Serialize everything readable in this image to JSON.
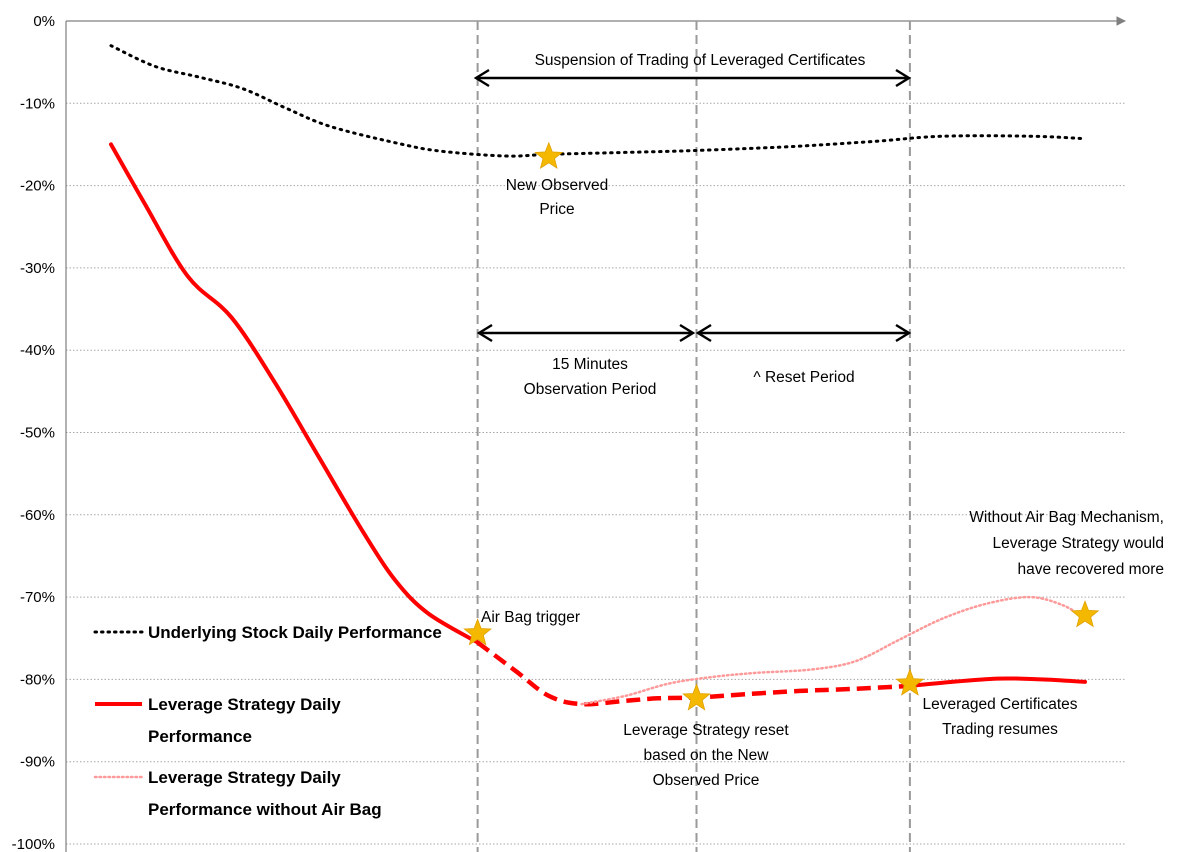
{
  "chart_data": {
    "type": "line",
    "title": "",
    "xlabel": "",
    "ylabel": "",
    "ylim": [
      -100,
      0
    ],
    "y_ticks": [
      "0%",
      "-10%",
      "-20%",
      "-30%",
      "-40%",
      "-50%",
      "-60%",
      "-70%",
      "-80%",
      "-90%",
      "-100%"
    ],
    "grid": true,
    "legend_position": "bottom-left",
    "series": [
      {
        "name": "Underlying Stock Daily Performance",
        "style": "dotted",
        "color": "#000000",
        "points": [
          [
            0,
            -3
          ],
          [
            4,
            -5.5
          ],
          [
            8,
            -6.8
          ],
          [
            12,
            -8.2
          ],
          [
            16,
            -10.6
          ],
          [
            20,
            -12.8
          ],
          [
            26,
            -14.8
          ],
          [
            30,
            -15.8
          ],
          [
            36,
            -16.4
          ],
          [
            40,
            -16.2
          ],
          [
            46,
            -16
          ],
          [
            52,
            -15.8
          ],
          [
            58,
            -15.5
          ],
          [
            63,
            -15.2
          ],
          [
            70,
            -14.6
          ],
          [
            76,
            -14
          ],
          [
            84,
            -14
          ],
          [
            89,
            -14.3
          ]
        ]
      },
      {
        "name": "Leverage Strategy Daily Performance",
        "style": "solid",
        "color": "#ff0000",
        "points": [
          [
            0,
            -15
          ],
          [
            3,
            -22
          ],
          [
            7,
            -31
          ],
          [
            11,
            -36
          ],
          [
            15,
            -44
          ],
          [
            19,
            -53
          ],
          [
            23,
            -62
          ],
          [
            26,
            -68
          ],
          [
            29,
            -72
          ],
          [
            33.5,
            -75.5
          ]
        ]
      },
      {
        "name": "Leverage Strategy Daily Performance",
        "style": "dashed",
        "color": "#ff0000",
        "points": [
          [
            33.5,
            -75.5
          ],
          [
            37,
            -79
          ],
          [
            40,
            -82
          ],
          [
            43,
            -83
          ],
          [
            47,
            -82.6
          ],
          [
            50,
            -82.3
          ],
          [
            53.5,
            -82.2
          ],
          [
            58,
            -81.8
          ],
          [
            63,
            -81.4
          ],
          [
            67,
            -81.2
          ],
          [
            73,
            -80.8
          ]
        ]
      },
      {
        "name": "Leverage Strategy Daily Performance",
        "style": "solid",
        "color": "#ff0000",
        "points": [
          [
            73,
            -80.8
          ],
          [
            76,
            -80.4
          ],
          [
            81,
            -79.9
          ],
          [
            85,
            -80
          ],
          [
            89,
            -80.3
          ]
        ]
      },
      {
        "name": "Leverage Strategy Daily Performance without Air Bag",
        "style": "dotted",
        "color": "#ff9a9a",
        "points": [
          [
            43,
            -83
          ],
          [
            47,
            -82
          ],
          [
            51,
            -80.5
          ],
          [
            55,
            -79.7
          ],
          [
            59,
            -79.2
          ],
          [
            64,
            -78.8
          ],
          [
            68,
            -77.8
          ],
          [
            72,
            -75.2
          ],
          [
            76,
            -72.6
          ],
          [
            80,
            -70.8
          ],
          [
            84,
            -70
          ],
          [
            87,
            -71
          ],
          [
            89,
            -72.6
          ]
        ]
      }
    ],
    "markers": [
      {
        "label": "New Observed Price",
        "x": 40,
        "y": -16.5
      },
      {
        "label": "Air Bag trigger",
        "x": 33.5,
        "y": -74.4
      },
      {
        "label": "Leverage Strategy reset based on the New Observed Price",
        "x": 53.5,
        "y": -82.3
      },
      {
        "label": "Leveraged Certificates Trading resumes",
        "x": 73,
        "y": -80.5
      },
      {
        "label": "Without Air Bag Mechanism, Leverage Strategy would have recovered more",
        "x": 89,
        "y": -72.2
      }
    ],
    "vertical_lines_x": [
      33.5,
      53.5,
      73
    ],
    "annotations": {
      "suspension": "Suspension of  Trading of Leveraged Certificates",
      "observation_line1": "15 Minutes",
      "observation_line2": "Observation Period",
      "reset": "^ Reset Period",
      "new_observed_line1": "New Observed",
      "new_observed_line2": "Price",
      "air_bag": "Air Bag trigger",
      "reset_based_line1": "Leverage Strategy reset",
      "reset_based_line2": "based on the New",
      "reset_based_line3": "Observed Price",
      "resumes_line1": "Leveraged Certificates",
      "resumes_line2": "Trading resumes",
      "without_line1": "Without Air Bag Mechanism,",
      "without_line2": "Leverage Strategy would",
      "without_line3": "have recovered more"
    },
    "legend": {
      "underlying": "Underlying Stock Daily Performance",
      "leverage_line1": "Leverage Strategy Daily",
      "leverage_line2": "Performance",
      "without_line1": "Leverage Strategy Daily",
      "without_line2": "Performance without Air Bag"
    },
    "colors": {
      "underlying": "#000000",
      "leverage": "#ff0000",
      "without_airbag": "#ff9a9a",
      "star": "#f5b800",
      "grid": "#a6a6a6",
      "axis": "#808080",
      "vline": "#9a9a9a"
    }
  }
}
